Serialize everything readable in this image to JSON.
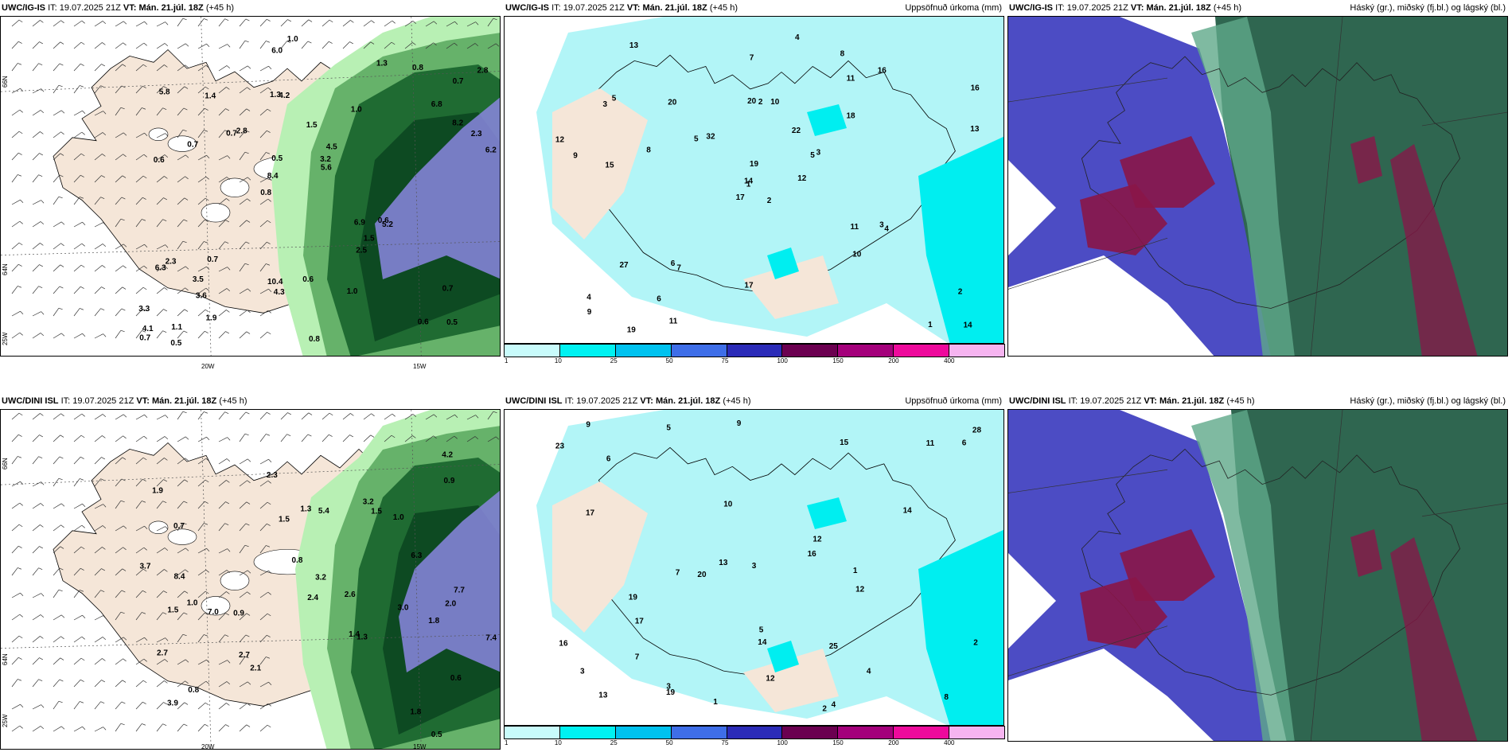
{
  "panels": [
    {
      "id": "p1",
      "model": "UWC/IG-IS",
      "it_label": "IT:",
      "it": "19.07.2025 21Z",
      "vt_label": "VT:",
      "vt": "Mán. 21.júl. 18Z",
      "lead": "(+45 h)",
      "right_title": "",
      "type": "precip-wind"
    },
    {
      "id": "p2",
      "model": "UWC/IG-IS",
      "it_label": "IT:",
      "it": "19.07.2025 21Z",
      "vt_label": "VT:",
      "vt": "Mán. 21.júl. 18Z",
      "lead": "(+45 h)",
      "right_title": "Uppsöfnuð úrkoma (mm)",
      "type": "accum"
    },
    {
      "id": "p3",
      "model": "UWC/IG-IS",
      "it_label": "IT:",
      "it": "19.07.2025 21Z",
      "vt_label": "VT:",
      "vt": "Mán. 21.júl. 18Z",
      "lead": "(+45 h)",
      "right_title": "Háský (gr.), miðský (fj.bl.) og lágský (bl.)",
      "type": "cloud"
    },
    {
      "id": "p4",
      "model": "UWC/DINI ISL",
      "it_label": "IT:",
      "it": "19.07.2025 21Z",
      "vt_label": "VT:",
      "vt": "Mán. 21.júl. 18Z",
      "lead": "(+45 h)",
      "right_title": "",
      "type": "precip-wind"
    },
    {
      "id": "p5",
      "model": "UWC/DINI ISL",
      "it_label": "IT:",
      "it": "19.07.2025 21Z",
      "vt_label": "VT:",
      "vt": "Mán. 21.júl. 18Z",
      "lead": "(+45 h)",
      "right_title": "Uppsöfnuð úrkoma (mm)",
      "type": "accum"
    },
    {
      "id": "p6",
      "model": "UWC/DINI ISL",
      "it_label": "IT:",
      "it": "19.07.2025 21Z",
      "vt_label": "VT:",
      "vt": "Mán. 21.júl. 18Z",
      "lead": "(+45 h)",
      "right_title": "Háský (gr.), miðský (fj.bl.) og lágský (bl.)",
      "type": "cloud"
    }
  ],
  "axis_labels": {
    "lat66": "66N",
    "lat64": "64N",
    "lon25": "25W",
    "lon20": "20W",
    "lon15": "15W"
  },
  "colorbar": {
    "ticks": [
      "1",
      "10",
      "25",
      "50",
      "75",
      "100",
      "150",
      "200",
      "400"
    ],
    "colors": [
      "#c8fbfb",
      "#00f2f2",
      "#00c2ef",
      "#3e6ee8",
      "#2b2bb8",
      "#6b0050",
      "#a4007b",
      "#ee0a9c",
      "#f6b4f0"
    ]
  },
  "colors": {
    "land": "#f5e6d8",
    "precip_light": "#b8f0b4",
    "precip_mid": "#66b26a",
    "precip_dark": "#1f6b32",
    "precip_deep": "#0d4a22",
    "precip_blue": "#8b86e0",
    "accum_light": "#b2f5f7",
    "accum_cyan": "#00eef0",
    "cloud_high": "#2f6650",
    "cloud_mid": "#4c4cc4",
    "cloud_low": "#8a1648"
  },
  "p1_values": [
    "0.5",
    "0.6",
    "0.7",
    "0.8",
    "1.0",
    "1.1",
    "1.3",
    "1.5",
    "2.3",
    "2.8",
    "3.3",
    "3.6",
    "4.2",
    "4.5",
    "5.2",
    "5.8",
    "6.0",
    "6.2",
    "6.9",
    "8.2",
    "8.4",
    "10.4",
    "0.5",
    "1.4",
    "1.3",
    "0.7",
    "0.6",
    "0.7",
    "0.6",
    "0.8",
    "0.7",
    "0.7",
    "2.5",
    "1.9",
    "2.3",
    "3.2",
    "4.1",
    "4.3",
    "5.6",
    "6.3",
    "6.8",
    "2.8",
    "1.5",
    "1.0",
    "3.5",
    "0.5",
    "0.7",
    "0.6",
    "0.8",
    "1.0"
  ],
  "p2_values": [
    "2",
    "3",
    "1",
    "4",
    "5",
    "7",
    "8",
    "10",
    "11",
    "12",
    "13",
    "14",
    "15",
    "16",
    "17",
    "18",
    "19",
    "20",
    "22",
    "27",
    "32",
    "9",
    "6",
    "2",
    "3",
    "4",
    "5",
    "7",
    "9",
    "11",
    "13",
    "14",
    "17",
    "19",
    "20",
    "16",
    "6",
    "1",
    "2",
    "3",
    "4",
    "5",
    "8",
    "10",
    "11",
    "12"
  ],
  "p4_values": [
    "0.5",
    "1.0",
    "1.4",
    "1.9",
    "0.6",
    "0.7",
    "0.8",
    "0.9",
    "1.0",
    "1.3",
    "1.5",
    "1.8",
    "2.1",
    "2.3",
    "2.6",
    "2.7",
    "3.0",
    "3.2",
    "3.7",
    "3.9",
    "4.2",
    "5.4",
    "6.3",
    "7.4",
    "7.7",
    "8.4",
    "7.0",
    "2.4",
    "0.8",
    "0.9",
    "1.3",
    "1.5",
    "2.7",
    "3.2",
    "1.5",
    "1.8",
    "2.0"
  ],
  "p5_values": [
    "1",
    "2",
    "3",
    "4",
    "5",
    "6",
    "7",
    "8",
    "9",
    "10",
    "11",
    "12",
    "13",
    "14",
    "15",
    "16",
    "17",
    "19",
    "20",
    "23",
    "25",
    "28",
    "12",
    "13",
    "14",
    "19",
    "16",
    "17",
    "9",
    "12",
    "3",
    "4",
    "5",
    "6",
    "7",
    "1",
    "2",
    "3"
  ]
}
